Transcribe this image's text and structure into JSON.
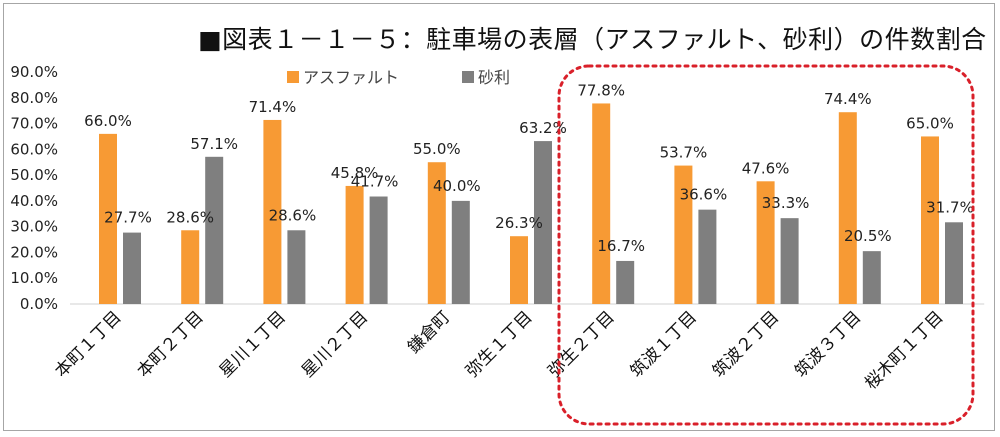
{
  "chart_data": {
    "type": "bar",
    "title": "■図表１－１－５：駐車場の表層（アスファルト、砂利）の件数割合",
    "categories": [
      "本町１丁目",
      "本町２丁目",
      "星川１丁目",
      "星川２丁目",
      "鎌倉町",
      "弥生１丁目",
      "弥生２丁目",
      "筑波１丁目",
      "筑波２丁目",
      "筑波３丁目",
      "桜木町１丁目"
    ],
    "series": [
      {
        "name": "アスファルト",
        "color": "#f79a34",
        "values": [
          66.0,
          28.6,
          71.4,
          45.8,
          55.0,
          26.3,
          77.8,
          53.7,
          47.6,
          74.4,
          65.0
        ],
        "labels": [
          "66.0%",
          "28.6%",
          "71.4%",
          "45.8%",
          "55.0%",
          "26.3%",
          "77.8%",
          "53.7%",
          "47.6%",
          "74.4%",
          "65.0%"
        ]
      },
      {
        "name": "砂利",
        "color": "#7f7f7f",
        "values": [
          27.7,
          57.1,
          28.6,
          41.7,
          40.0,
          63.2,
          16.7,
          36.6,
          33.3,
          20.5,
          31.7
        ],
        "labels": [
          "27.7%",
          "57.1%",
          "28.6%",
          "41.7%",
          "40.0%",
          "63.2%",
          "16.7%",
          "36.6%",
          "33.3%",
          "20.5%",
          "31.7%"
        ]
      }
    ],
    "ylim": [
      0,
      90
    ],
    "yticks": [
      "0.0%",
      "10.0%",
      "20.0%",
      "30.0%",
      "40.0%",
      "50.0%",
      "60.0%",
      "70.0%",
      "80.0%",
      "90.0%"
    ],
    "grid": false,
    "legend": "top-center",
    "highlight_color": "#d9202a"
  }
}
